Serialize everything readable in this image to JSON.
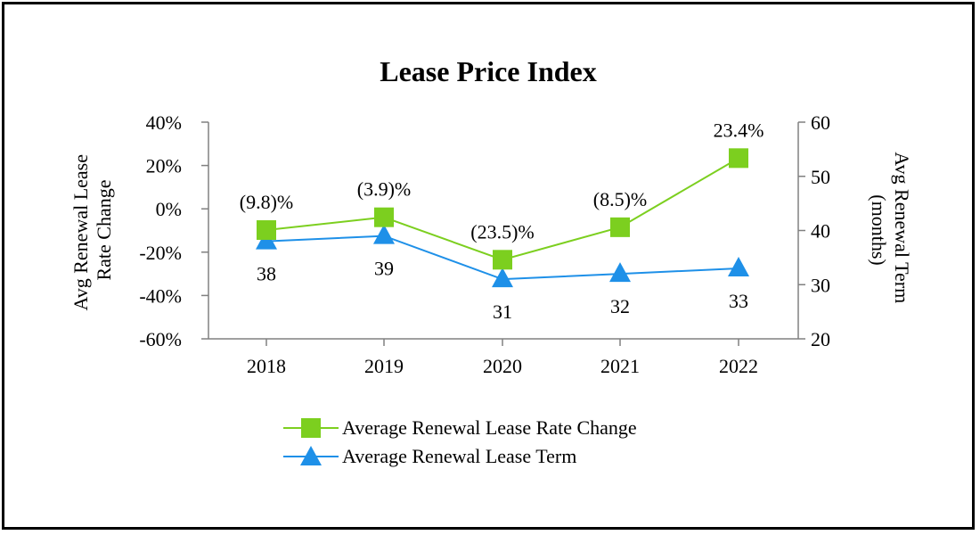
{
  "chart_data": {
    "type": "line",
    "title": "Lease Price Index",
    "categories": [
      "2018",
      "2019",
      "2020",
      "2021",
      "2022"
    ],
    "y_left": {
      "label_lines": [
        "Avg Renewal Lease",
        "Rate Change"
      ],
      "ticks": [
        40,
        20,
        0,
        -20,
        -40,
        -60
      ],
      "tick_labels": [
        "40%",
        "20%",
        "0%",
        "-20%",
        "-40%",
        "-60%"
      ],
      "ylim": [
        -60,
        40
      ]
    },
    "y_right": {
      "label_lines": [
        "Avg Renewal Term",
        "(months)"
      ],
      "ticks": [
        60,
        50,
        40,
        30,
        20
      ],
      "tick_labels": [
        "60",
        "50",
        "40",
        "30",
        "20"
      ],
      "ylim": [
        20,
        60
      ]
    },
    "series": [
      {
        "name": "Average Renewal Lease Rate Change",
        "axis": "left",
        "marker": "square",
        "color": "#7ccf1f",
        "values": [
          -9.8,
          -3.9,
          -23.5,
          -8.5,
          23.4
        ],
        "data_labels": [
          "(9.8)%",
          "(3.9)%",
          "(23.5)%",
          "(8.5)%",
          "23.4%"
        ]
      },
      {
        "name": "Average Renewal Lease Term",
        "axis": "right",
        "marker": "triangle",
        "color": "#1e90e8",
        "values": [
          38,
          39,
          31,
          32,
          33
        ],
        "data_labels": [
          "38",
          "39",
          "31",
          "32",
          "33"
        ]
      }
    ],
    "legend_position": "bottom-center"
  }
}
